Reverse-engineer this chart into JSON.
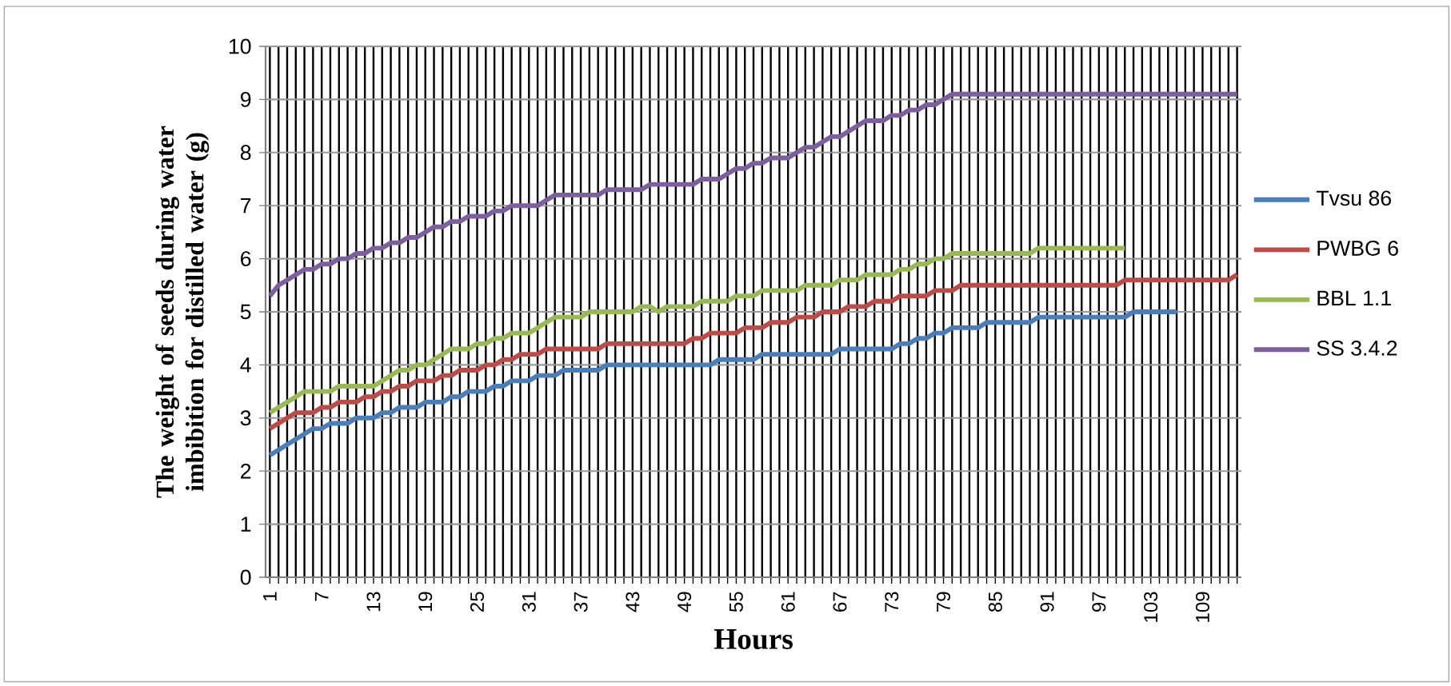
{
  "chart_data": {
    "type": "line",
    "xlabel": "Hours",
    "ylabel": "The weight of seeds during water imbibition  for distilled water (g)",
    "categories": [
      "1",
      null,
      null,
      null,
      null,
      null,
      "7",
      null,
      null,
      null,
      null,
      null,
      "13",
      null,
      null,
      null,
      null,
      null,
      "19",
      null,
      null,
      null,
      null,
      null,
      "25",
      null,
      null,
      null,
      null,
      null,
      "31",
      null,
      null,
      null,
      null,
      null,
      "37",
      null,
      null,
      null,
      null,
      null,
      "43",
      null,
      null,
      null,
      null,
      null,
      "49",
      null,
      null,
      null,
      null,
      null,
      "55",
      null,
      null,
      null,
      null,
      null,
      "61",
      null,
      null,
      null,
      null,
      null,
      "67",
      null,
      null,
      null,
      null,
      null,
      "73",
      null,
      null,
      null,
      null,
      null,
      "79",
      null,
      null,
      null,
      null,
      null,
      "85",
      null,
      null,
      null,
      null,
      null,
      "91",
      null,
      null,
      null,
      null,
      null,
      "97",
      null,
      null,
      null,
      null,
      null,
      "103",
      null,
      null,
      null,
      null,
      null,
      "109",
      null,
      null,
      null,
      null
    ],
    "series": [
      {
        "name": "Tvsu 86",
        "color": "#4a7ebb",
        "values": [
          2.3,
          2.4,
          2.5,
          2.6,
          2.7,
          2.8,
          2.8,
          2.9,
          2.9,
          2.9,
          3.0,
          3.0,
          3.0,
          3.1,
          3.1,
          3.2,
          3.2,
          3.2,
          3.3,
          3.3,
          3.3,
          3.4,
          3.4,
          3.5,
          3.5,
          3.5,
          3.6,
          3.6,
          3.7,
          3.7,
          3.7,
          3.8,
          3.8,
          3.8,
          3.9,
          3.9,
          3.9,
          3.9,
          3.9,
          4.0,
          4.0,
          4.0,
          4.0,
          4.0,
          4.0,
          4.0,
          4.0,
          4.0,
          4.0,
          4.0,
          4.0,
          4.0,
          4.1,
          4.1,
          4.1,
          4.1,
          4.1,
          4.2,
          4.2,
          4.2,
          4.2,
          4.2,
          4.2,
          4.2,
          4.2,
          4.2,
          4.3,
          4.3,
          4.3,
          4.3,
          4.3,
          4.3,
          4.3,
          4.4,
          4.4,
          4.5,
          4.5,
          4.6,
          4.6,
          4.7,
          4.7,
          4.7,
          4.7,
          4.8,
          4.8,
          4.8,
          4.8,
          4.8,
          4.8,
          4.9,
          4.9,
          4.9,
          4.9,
          4.9,
          4.9,
          4.9,
          4.9,
          4.9,
          4.9,
          4.9,
          5.0,
          5.0,
          5.0,
          5.0,
          5.0,
          5.0,
          null,
          null,
          null,
          null,
          null,
          null,
          null
        ]
      },
      {
        "name": "PWBG 6",
        "color": "#be4b48",
        "values": [
          2.8,
          2.9,
          3.0,
          3.1,
          3.1,
          3.1,
          3.2,
          3.2,
          3.3,
          3.3,
          3.3,
          3.4,
          3.4,
          3.5,
          3.5,
          3.6,
          3.6,
          3.7,
          3.7,
          3.7,
          3.8,
          3.8,
          3.9,
          3.9,
          3.9,
          4.0,
          4.0,
          4.1,
          4.1,
          4.2,
          4.2,
          4.2,
          4.3,
          4.3,
          4.3,
          4.3,
          4.3,
          4.3,
          4.3,
          4.4,
          4.4,
          4.4,
          4.4,
          4.4,
          4.4,
          4.4,
          4.4,
          4.4,
          4.4,
          4.5,
          4.5,
          4.6,
          4.6,
          4.6,
          4.6,
          4.7,
          4.7,
          4.7,
          4.8,
          4.8,
          4.8,
          4.9,
          4.9,
          4.9,
          5.0,
          5.0,
          5.0,
          5.1,
          5.1,
          5.1,
          5.2,
          5.2,
          5.2,
          5.3,
          5.3,
          5.3,
          5.3,
          5.4,
          5.4,
          5.4,
          5.5,
          5.5,
          5.5,
          5.5,
          5.5,
          5.5,
          5.5,
          5.5,
          5.5,
          5.5,
          5.5,
          5.5,
          5.5,
          5.5,
          5.5,
          5.5,
          5.5,
          5.5,
          5.5,
          5.6,
          5.6,
          5.6,
          5.6,
          5.6,
          5.6,
          5.6,
          5.6,
          5.6,
          5.6,
          5.6,
          5.6,
          5.6,
          5.7
        ]
      },
      {
        "name": "BBL 1.1",
        "color": "#98b954",
        "values": [
          3.1,
          3.2,
          3.3,
          3.4,
          3.5,
          3.5,
          3.5,
          3.5,
          3.6,
          3.6,
          3.6,
          3.6,
          3.6,
          3.7,
          3.8,
          3.9,
          3.9,
          4.0,
          4.0,
          4.1,
          4.2,
          4.3,
          4.3,
          4.3,
          4.4,
          4.4,
          4.5,
          4.5,
          4.6,
          4.6,
          4.6,
          4.7,
          4.8,
          4.9,
          4.9,
          4.9,
          4.9,
          5.0,
          5.0,
          5.0,
          5.0,
          5.0,
          5.0,
          5.1,
          5.1,
          5.0,
          5.1,
          5.1,
          5.1,
          5.1,
          5.2,
          5.2,
          5.2,
          5.2,
          5.3,
          5.3,
          5.3,
          5.4,
          5.4,
          5.4,
          5.4,
          5.4,
          5.5,
          5.5,
          5.5,
          5.5,
          5.6,
          5.6,
          5.6,
          5.7,
          5.7,
          5.7,
          5.7,
          5.8,
          5.8,
          5.9,
          5.9,
          6.0,
          6.0,
          6.1,
          6.1,
          6.1,
          6.1,
          6.1,
          6.1,
          6.1,
          6.1,
          6.1,
          6.1,
          6.2,
          6.2,
          6.2,
          6.2,
          6.2,
          6.2,
          6.2,
          6.2,
          6.2,
          6.2,
          6.2,
          null,
          null,
          null,
          null,
          null,
          null,
          null,
          null,
          null,
          null,
          null,
          null,
          null
        ]
      },
      {
        "name": "SS 3.4.2",
        "color": "#7d5fa0",
        "values": [
          5.3,
          5.5,
          5.6,
          5.7,
          5.8,
          5.8,
          5.9,
          5.9,
          6.0,
          6.0,
          6.1,
          6.1,
          6.2,
          6.2,
          6.3,
          6.3,
          6.4,
          6.4,
          6.5,
          6.6,
          6.6,
          6.7,
          6.7,
          6.8,
          6.8,
          6.8,
          6.9,
          6.9,
          7.0,
          7.0,
          7.0,
          7.0,
          7.1,
          7.2,
          7.2,
          7.2,
          7.2,
          7.2,
          7.2,
          7.3,
          7.3,
          7.3,
          7.3,
          7.3,
          7.4,
          7.4,
          7.4,
          7.4,
          7.4,
          7.4,
          7.5,
          7.5,
          7.5,
          7.6,
          7.7,
          7.7,
          7.8,
          7.8,
          7.9,
          7.9,
          7.9,
          8.0,
          8.1,
          8.1,
          8.2,
          8.3,
          8.3,
          8.4,
          8.5,
          8.6,
          8.6,
          8.6,
          8.7,
          8.7,
          8.8,
          8.8,
          8.9,
          8.9,
          9.0,
          9.1,
          9.1,
          9.1,
          9.1,
          9.1,
          9.1,
          9.1,
          9.1,
          9.1,
          9.1,
          9.1,
          9.1,
          9.1,
          9.1,
          9.1,
          9.1,
          9.1,
          9.1,
          9.1,
          9.1,
          9.1,
          9.1,
          9.1,
          9.1,
          9.1,
          9.1,
          9.1,
          9.1,
          9.1,
          9.1,
          9.1,
          9.1,
          9.1,
          9.1
        ]
      }
    ],
    "ylim": [
      0,
      10
    ],
    "yticks": [
      0,
      1,
      2,
      3,
      4,
      5,
      6,
      7,
      8,
      9,
      10
    ],
    "grid": true,
    "legend": "right",
    "marker": "none",
    "line_style": "solid"
  }
}
